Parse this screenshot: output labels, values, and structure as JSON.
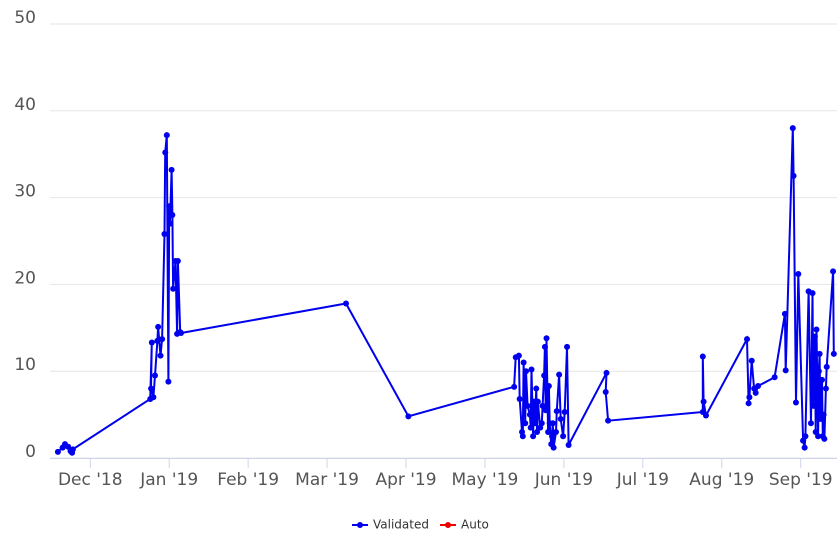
{
  "chart_data": {
    "type": "line",
    "xlim": [
      -0.51,
      9.46
    ],
    "xticks": [
      {
        "value": 0,
        "label": "Dec '18"
      },
      {
        "value": 1,
        "label": "Jan '19"
      },
      {
        "value": 2,
        "label": "Feb '19"
      },
      {
        "value": 3,
        "label": "Mar '19"
      },
      {
        "value": 4,
        "label": "Apr '19"
      },
      {
        "value": 5,
        "label": "May '19"
      },
      {
        "value": 6,
        "label": "Jun '19"
      },
      {
        "value": 7,
        "label": "Jul '19"
      },
      {
        "value": 8,
        "label": "Aug '19"
      },
      {
        "value": 9,
        "label": "Sep '19"
      }
    ],
    "ylim": [
      0,
      50
    ],
    "yticks": [
      0,
      10,
      20,
      30,
      40,
      50
    ],
    "grid": true,
    "legend": "bottom",
    "series": [
      {
        "name": "Validated",
        "color": "#0000ee",
        "x": [
          -0.41,
          -0.35,
          -0.32,
          -0.28,
          -0.25,
          -0.23,
          -0.22,
          0.76,
          0.78,
          0.77,
          0.8,
          0.82,
          0.85,
          0.86,
          0.89,
          0.91,
          0.94,
          0.95,
          0.97,
          0.99,
          1.0,
          1.01,
          1.03,
          1.04,
          1.05,
          1.08,
          1.1,
          1.11,
          1.14,
          1.15,
          3.24,
          4.03,
          5.37,
          5.39,
          5.43,
          5.44,
          5.47,
          5.48,
          5.49,
          5.51,
          5.52,
          5.54,
          5.57,
          5.58,
          5.59,
          5.61,
          5.62,
          5.63,
          5.65,
          5.66,
          5.67,
          5.7,
          5.72,
          5.73,
          5.75,
          5.76,
          5.77,
          5.78,
          5.8,
          5.81,
          5.82,
          5.84,
          5.85,
          5.86,
          5.87,
          5.9,
          5.91,
          5.94,
          5.96,
          5.99,
          6.01,
          6.04,
          6.06,
          6.54,
          6.53,
          6.56,
          7.76,
          7.76,
          7.77,
          7.8,
          8.32,
          8.34,
          8.35,
          8.38,
          8.41,
          8.43,
          8.46,
          8.67,
          8.8,
          8.81,
          8.9,
          8.91,
          8.94,
          8.97,
          9.03,
          9.05,
          9.06,
          9.1,
          9.13,
          9.15,
          9.16,
          9.18,
          9.19,
          9.2,
          9.22,
          9.23,
          9.24,
          9.25,
          9.27,
          9.28,
          9.29,
          9.3,
          9.32,
          9.33,
          9.41,
          9.42
        ],
        "values": [
          0.7,
          1.2,
          1.6,
          1.3,
          0.8,
          0.6,
          1.0,
          6.8,
          13.3,
          8,
          7,
          9.5,
          13.5,
          15.1,
          11.8,
          13.7,
          25.8,
          35.2,
          37.2,
          8.8,
          29,
          27,
          33.2,
          28,
          19.5,
          22.7,
          14.3,
          22.7,
          14.5,
          14.4,
          17.8,
          4.8,
          8.2,
          11.6,
          11.8,
          6.8,
          3,
          2.5,
          11,
          4,
          10,
          6,
          5,
          3.5,
          10.2,
          2.5,
          6.5,
          4,
          8,
          3,
          6.5,
          3.5,
          4,
          6,
          9.5,
          12.8,
          5.5,
          13.8,
          3,
          8.3,
          4,
          1.6,
          2.5,
          4,
          1.2,
          3,
          5.4,
          9.6,
          4.5,
          2.5,
          5.3,
          12.8,
          1.5,
          9.8,
          7.6,
          4.3,
          5.3,
          11.7,
          6.5,
          4.9,
          13.7,
          6.3,
          7,
          11.2,
          8,
          7.5,
          8.3,
          9.3,
          16.6,
          10.1,
          38,
          32.5,
          6.4,
          21.2,
          2,
          1.2,
          2.5,
          19.2,
          4,
          19,
          6,
          14,
          3,
          14.8,
          2.5,
          10,
          12,
          4.5,
          9,
          2.5,
          5,
          2.2,
          8,
          10.5,
          21.5,
          12
        ]
      },
      {
        "name": "Auto",
        "color": "#ee0000",
        "x": [],
        "values": []
      }
    ]
  }
}
